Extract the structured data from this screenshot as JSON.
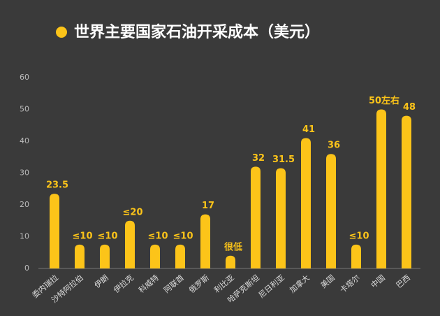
{
  "chart_data": {
    "type": "bar",
    "title": "世界主要国家石油开采成本（美元）",
    "categories": [
      "委内瑞拉",
      "沙特阿拉伯",
      "伊朗",
      "伊拉克",
      "科威特",
      "阿联酋",
      "俄罗斯",
      "利比亚",
      "哈萨克斯坦",
      "尼日利亚",
      "加拿大",
      "美国",
      "卡塔尔",
      "中国",
      "巴西"
    ],
    "values": [
      23.5,
      7.5,
      7.5,
      15,
      7.5,
      7.5,
      17,
      4,
      32,
      31.5,
      41,
      36,
      7.5,
      50,
      48
    ],
    "value_labels": [
      "23.5",
      "≤10",
      "≤10",
      "≤20",
      "≤10",
      "≤10",
      "17",
      "很低",
      "32",
      "31.5",
      "41",
      "36",
      "≤10",
      "50左右",
      "48"
    ],
    "color": "#fcc419",
    "ylim": [
      0,
      60
    ],
    "yticks": [
      0,
      10,
      20,
      30,
      40,
      50,
      60
    ],
    "grid": false
  }
}
